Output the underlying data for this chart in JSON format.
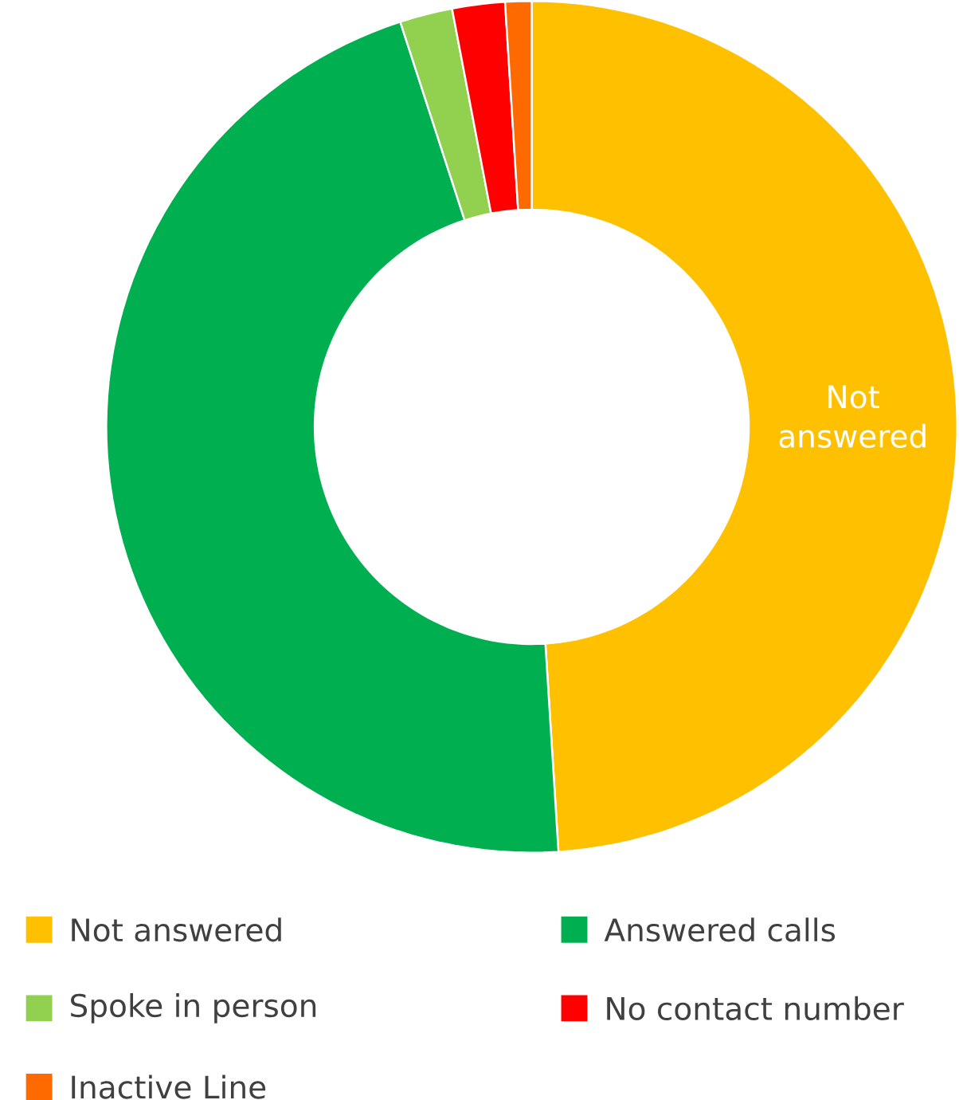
{
  "chart_data": {
    "type": "donut",
    "categories": [
      "Not answered",
      "Answered calls",
      "Spoke in person",
      "No contact number",
      "Inactive Line"
    ],
    "values": [
      49,
      46,
      2,
      2,
      1
    ],
    "colors": [
      "#ffc000",
      "#00b050",
      "#92d050",
      "#ff0000",
      "#ff6a00"
    ],
    "annotations": [
      "Not answered"
    ],
    "legend": "bottom"
  }
}
